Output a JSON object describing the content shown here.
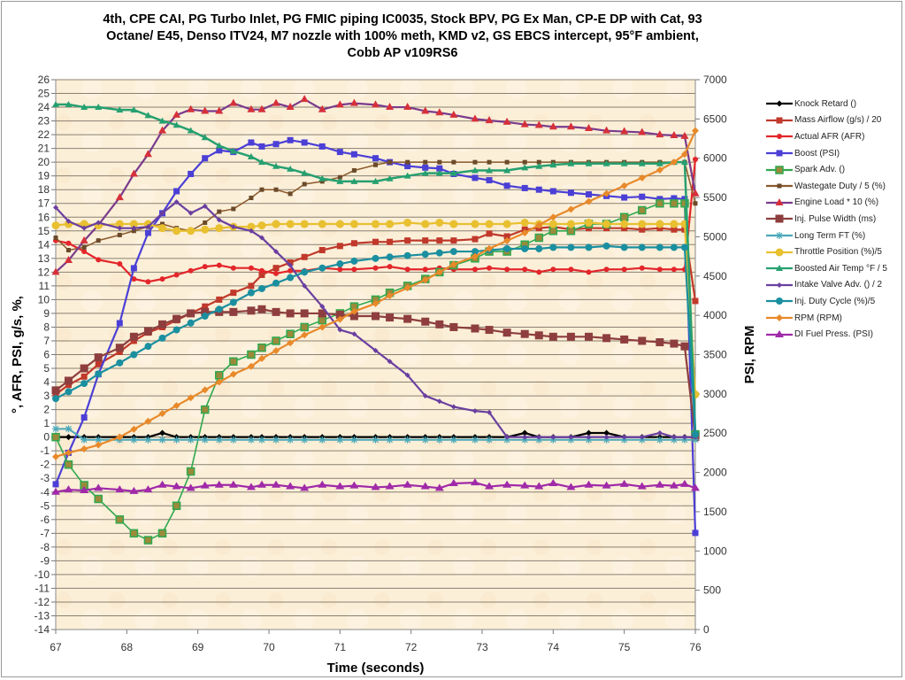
{
  "chart_data": {
    "type": "line",
    "title": "4th, CPE CAI, PG Turbo Inlet, PG FMIC piping  IC0035, Stock BPV, PG Ex Man, CP-E DP with Cat, 93 Octane/ E45, Denso ITV24, M7 nozzle with 100% meth, KMD v2, GS EBCS intercept,  95°F ambient, Cobb AP v109RS6",
    "title_lines": [
      "4th, CPE CAI, PG Turbo Inlet, PG FMIC piping  IC0035, Stock BPV, PG Ex Man, CP-E DP with Cat, 93",
      "Octane/ E45, Denso ITV24, M7 nozzle with 100% meth, KMD v2, GS EBCS intercept,  95°F ambient,",
      "Cobb AP v109RS6"
    ],
    "xlabel": "Time (seconds)",
    "ylabel": "°, AFR, PSI, g/s, %,",
    "y2label": "PSI, RPM",
    "xlim": [
      67,
      76
    ],
    "ylim": [
      -14,
      26
    ],
    "y2lim": [
      0,
      7000
    ],
    "xticks": [
      "67",
      "68",
      "69",
      "70",
      "71",
      "72",
      "73",
      "74",
      "75",
      "76"
    ],
    "yticks": [
      "26",
      "25",
      "24",
      "23",
      "22",
      "21",
      "20",
      "19",
      "18",
      "17",
      "16",
      "15",
      "14",
      "13",
      "12",
      "11",
      "10",
      "9",
      "8",
      "7",
      "6",
      "5",
      "4",
      "3",
      "2",
      "1",
      "0",
      "-1",
      "-2",
      "-3",
      "-4",
      "-5",
      "-6",
      "-7",
      "-8",
      "-9",
      "-10",
      "-11",
      "-12",
      "-13",
      "-14"
    ],
    "y2ticks": [
      "7000",
      "6500",
      "6000",
      "5500",
      "5000",
      "4500",
      "4000",
      "3500",
      "3000",
      "2500",
      "2000",
      "1500",
      "1000",
      "500",
      "0"
    ],
    "grid": true,
    "legend_position": "right",
    "x": [
      67.0,
      67.18,
      67.4,
      67.6,
      67.9,
      68.1,
      68.3,
      68.5,
      68.7,
      68.9,
      69.1,
      69.3,
      69.5,
      69.75,
      69.9,
      70.1,
      70.3,
      70.5,
      70.75,
      71.0,
      71.2,
      71.5,
      71.7,
      71.95,
      72.2,
      72.4,
      72.6,
      72.9,
      73.1,
      73.35,
      73.6,
      73.8,
      74.0,
      74.25,
      74.5,
      74.75,
      75.0,
      75.25,
      75.5,
      75.7,
      75.85,
      76.0
    ],
    "series": [
      {
        "name": "Knock Retard ()",
        "axis": "left",
        "color": "#000000",
        "marker": "diamond",
        "values": [
          0,
          0,
          0,
          0,
          0,
          0,
          0,
          0.3,
          0,
          0,
          0,
          0,
          0,
          0,
          0,
          0,
          0,
          0,
          0,
          0,
          0,
          0,
          0,
          0,
          0,
          0,
          0,
          0,
          0,
          0,
          0.3,
          0,
          0,
          0,
          0.3,
          0.3,
          0,
          0,
          0,
          0,
          0,
          0
        ]
      },
      {
        "name": "Mass Airflow (g/s) / 20",
        "axis": "left",
        "color": "#c0392b",
        "marker": "square",
        "values": [
          3.1,
          3.8,
          4.4,
          5.3,
          6.2,
          7,
          7.6,
          8,
          8.5,
          9,
          9.5,
          10,
          10.5,
          11,
          11.8,
          12.3,
          12.7,
          13.1,
          13.6,
          13.9,
          14.1,
          14.2,
          14.2,
          14.3,
          14.3,
          14.3,
          14.3,
          14.4,
          14.8,
          14.6,
          15.1,
          15.2,
          15.3,
          15.1,
          15.2,
          15.2,
          15.2,
          15.1,
          15.2,
          15.1,
          15.1,
          9.9
        ]
      },
      {
        "name": "Actual AFR (AFR)",
        "axis": "left",
        "color": "#e3262b",
        "marker": "circle",
        "values": [
          14.3,
          14.1,
          13.5,
          12.9,
          12.6,
          11.5,
          11.3,
          11.5,
          11.8,
          12.1,
          12.4,
          12.5,
          12.3,
          12.3,
          12.1,
          11.9,
          12.1,
          12.1,
          12.3,
          12.2,
          12.2,
          12.3,
          12.4,
          12.2,
          12.2,
          12.3,
          12.2,
          12.2,
          12.3,
          12.2,
          12.2,
          12.0,
          12.2,
          12.2,
          12.0,
          12.2,
          12.2,
          12.3,
          12.2,
          12.2,
          12.2,
          20.2
        ]
      },
      {
        "name": "Boost (PSI)",
        "axis": "right",
        "color": "#4b3fd6",
        "marker": "square",
        "values": [
          1850,
          2250,
          2700,
          3250,
          3900,
          4600,
          5050,
          5300,
          5580,
          5800,
          6000,
          6100,
          6080,
          6200,
          6150,
          6180,
          6230,
          6200,
          6150,
          6080,
          6050,
          6000,
          5950,
          5900,
          5880,
          5870,
          5800,
          5750,
          5720,
          5650,
          5620,
          5600,
          5580,
          5560,
          5540,
          5520,
          5500,
          5510,
          5480,
          5490,
          5480,
          1230
        ]
      },
      {
        "name": "Spark Adv. ()",
        "axis": "left",
        "color": "#2fa84f",
        "marker": "square-olive",
        "values": [
          0,
          -2,
          -3.5,
          -4.5,
          -6,
          -7,
          -7.5,
          -7,
          -5,
          -2.5,
          2,
          4.5,
          5.5,
          6,
          6.5,
          7,
          7.5,
          8,
          8.5,
          9,
          9.5,
          10,
          10.5,
          11,
          11.5,
          12,
          12.5,
          13,
          13.5,
          13.5,
          14,
          14.5,
          15,
          15,
          15.5,
          15.5,
          16,
          16.5,
          17,
          17,
          17,
          0.2
        ]
      },
      {
        "name": "Wastegate Duty / 5 (%)",
        "axis": "left",
        "color": "#8b5a2b",
        "marker": "small-square",
        "values": [
          14.5,
          13.6,
          13.8,
          14.3,
          14.7,
          15,
          15.3,
          15.5,
          15.2,
          15,
          15.6,
          16.4,
          16.6,
          17.4,
          18,
          18,
          17.7,
          18.4,
          18.6,
          18.9,
          19.4,
          19.8,
          20,
          20,
          20,
          20,
          20,
          20,
          20,
          20,
          20,
          20,
          20,
          20,
          20,
          20,
          20,
          20,
          20,
          20,
          20,
          17
        ]
      },
      {
        "name": "Engine Load * 10 (%)",
        "axis": "right",
        "color": "#7a3a8c",
        "marker": "triangle-red",
        "values": [
          4550,
          4700,
          4950,
          5150,
          5500,
          5800,
          6050,
          6350,
          6550,
          6620,
          6600,
          6600,
          6700,
          6620,
          6620,
          6700,
          6650,
          6750,
          6620,
          6680,
          6700,
          6680,
          6650,
          6650,
          6600,
          6580,
          6550,
          6500,
          6480,
          6460,
          6430,
          6420,
          6400,
          6400,
          6380,
          6350,
          6340,
          6330,
          6300,
          6290,
          6280,
          5550
        ]
      },
      {
        "name": "Inj. Pulse Width (ms)",
        "axis": "left",
        "color": "#8e3e3e",
        "marker": "square-big",
        "values": [
          3.4,
          4.1,
          5,
          5.8,
          6.5,
          7.3,
          7.7,
          8.2,
          8.6,
          9,
          9.1,
          9.1,
          9.1,
          9.2,
          9.3,
          9.1,
          9,
          9,
          9,
          8.9,
          8.8,
          8.8,
          8.7,
          8.6,
          8.4,
          8.2,
          8,
          7.9,
          7.8,
          7.6,
          7.5,
          7.4,
          7.3,
          7.3,
          7.3,
          7.2,
          7.1,
          7,
          6.9,
          6.8,
          6.6,
          0
        ]
      },
      {
        "name": "Long Term FT (%)",
        "axis": "left",
        "color": "#4aa8b8",
        "marker": "star",
        "values": [
          0.6,
          0.6,
          -0.2,
          -0.2,
          -0.2,
          -0.2,
          -0.2,
          -0.2,
          -0.2,
          -0.2,
          -0.2,
          -0.2,
          -0.2,
          -0.2,
          -0.2,
          -0.2,
          -0.2,
          -0.2,
          -0.2,
          -0.2,
          -0.2,
          -0.2,
          -0.2,
          -0.2,
          -0.2,
          -0.2,
          -0.2,
          -0.2,
          -0.2,
          -0.2,
          -0.2,
          -0.2,
          -0.2,
          -0.2,
          -0.2,
          -0.2,
          -0.2,
          -0.2,
          -0.2,
          -0.2,
          -0.2,
          -0.2
        ]
      },
      {
        "name": "Throttle Position (%)/5",
        "axis": "left",
        "color": "#e8c030",
        "marker": "circle-yellow",
        "values": [
          15.4,
          15.5,
          15.5,
          15.4,
          15.5,
          15.5,
          15.5,
          15.2,
          15,
          15,
          15.1,
          15.2,
          15.3,
          15.3,
          15.4,
          15.5,
          15.5,
          15.5,
          15.5,
          15.5,
          15.5,
          15.5,
          15.5,
          15.6,
          15.5,
          15.6,
          15.5,
          15.5,
          15.5,
          15.5,
          15.6,
          15.5,
          15.5,
          15.5,
          15.6,
          15.5,
          15.5,
          15.5,
          15.5,
          15.5,
          15.5,
          3.1
        ]
      },
      {
        "name": "Boosted Air Temp °F / 5",
        "axis": "left",
        "color": "#26a070",
        "marker": "triangle-green",
        "values": [
          24.2,
          24.2,
          24,
          24,
          23.8,
          23.8,
          23.4,
          23,
          22.7,
          22.3,
          21.8,
          21.2,
          20.8,
          20.4,
          20,
          19.7,
          19.5,
          19.2,
          18.8,
          18.6,
          18.6,
          18.6,
          18.8,
          19,
          19.2,
          19.2,
          19.2,
          19.4,
          19.4,
          19.4,
          19.6,
          19.7,
          19.8,
          19.9,
          19.9,
          19.9,
          19.9,
          19.9,
          19.9,
          20,
          20,
          0.3
        ]
      },
      {
        "name": "Intake Valve Adv. () / 2",
        "axis": "left",
        "color": "#6a3fa0",
        "marker": "diamond-purple",
        "values": [
          16.7,
          15.7,
          15.2,
          15.6,
          15.2,
          15.2,
          15.3,
          16.3,
          17.1,
          16.3,
          16.8,
          15.8,
          15.3,
          15,
          14.5,
          13.5,
          12.5,
          11,
          9.5,
          7.8,
          7.5,
          6.3,
          5.5,
          4.5,
          3,
          2.6,
          2.2,
          1.9,
          1.8,
          0,
          0,
          0,
          0,
          0,
          0,
          0,
          0,
          0,
          0.3,
          0,
          0,
          0
        ]
      },
      {
        "name": "Inj. Duty Cycle (%)/5",
        "axis": "left",
        "color": "#1a8fa0",
        "marker": "circle-teal",
        "values": [
          2.8,
          3.3,
          3.9,
          4.6,
          5.4,
          6,
          6.6,
          7.2,
          7.8,
          8.3,
          8.8,
          9.3,
          9.8,
          10.5,
          10.8,
          11.2,
          11.6,
          12,
          12.3,
          12.6,
          12.8,
          13,
          13.1,
          13.2,
          13.3,
          13.4,
          13.5,
          13.5,
          13.6,
          13.7,
          13.7,
          13.7,
          13.8,
          13.8,
          13.8,
          13.9,
          13.8,
          13.8,
          13.8,
          13.8,
          13.8,
          0.2
        ]
      },
      {
        "name": "RPM (RPM)",
        "axis": "right",
        "color": "#e8892a",
        "marker": "diamond-orange",
        "values": [
          2200,
          2250,
          2300,
          2350,
          2450,
          2550,
          2650,
          2750,
          2850,
          2950,
          3050,
          3150,
          3250,
          3350,
          3450,
          3550,
          3650,
          3750,
          3850,
          3950,
          4050,
          4150,
          4250,
          4350,
          4450,
          4550,
          4650,
          4750,
          4850,
          4950,
          5050,
          5150,
          5250,
          5350,
          5450,
          5550,
          5650,
          5750,
          5850,
          5950,
          6050,
          6350
        ]
      },
      {
        "name": "DI Fuel Press. (PSI)",
        "axis": "right",
        "color": "#a02aa8",
        "marker": "triangle-magenta",
        "values": [
          1750,
          1780,
          1770,
          1800,
          1780,
          1760,
          1780,
          1840,
          1820,
          1800,
          1830,
          1840,
          1840,
          1810,
          1840,
          1840,
          1820,
          1800,
          1840,
          1820,
          1830,
          1810,
          1820,
          1840,
          1820,
          1800,
          1860,
          1870,
          1820,
          1840,
          1830,
          1820,
          1860,
          1810,
          1840,
          1830,
          1850,
          1820,
          1840,
          1830,
          1850,
          1800
        ]
      }
    ]
  }
}
